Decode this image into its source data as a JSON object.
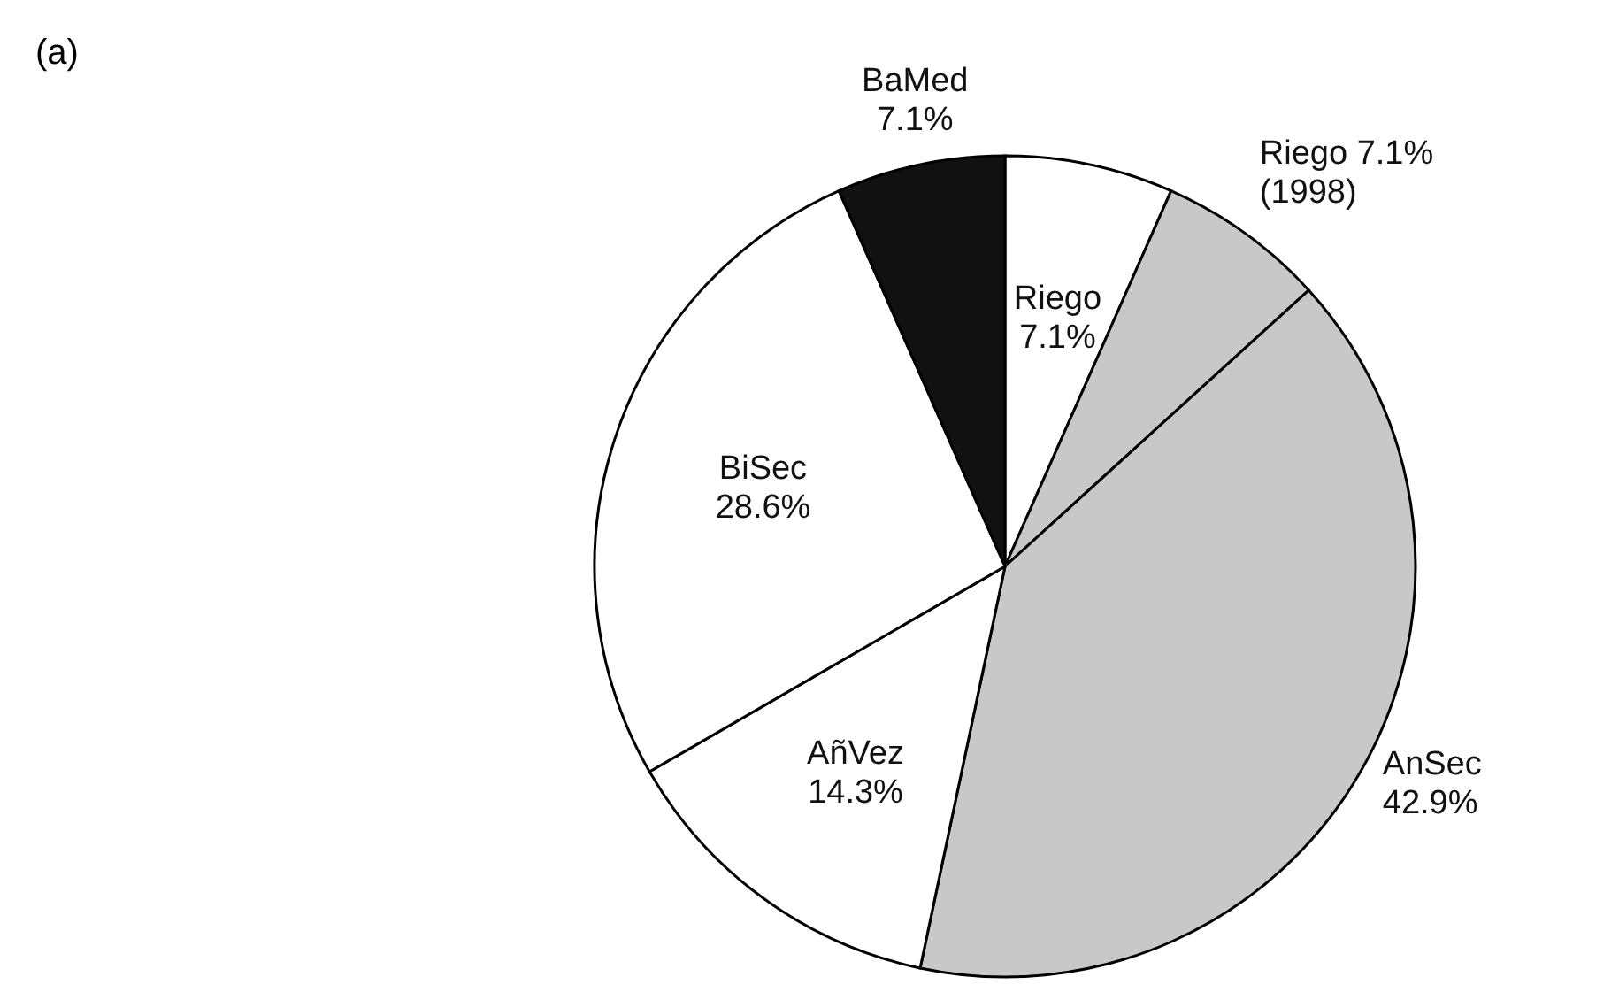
{
  "chart_data": {
    "type": "pie",
    "categories": [
      "Riego",
      "Riego",
      "AnSec",
      "AñVez",
      "BiSec",
      "BaMed"
    ],
    "values": [
      7.1,
      7.1,
      42.9,
      14.3,
      28.6,
      7.1
    ],
    "value_labels": [
      "7.1%",
      "7.1%\n(1998)",
      "42.9%",
      "14.3%",
      "28.6%",
      "7.1%"
    ],
    "colors": [
      "#ffffff",
      "#c8c8c8",
      "#c8c8c8",
      "#ffffff",
      "#ffffff",
      "#111111"
    ],
    "annotations": [
      "(a)"
    ]
  }
}
